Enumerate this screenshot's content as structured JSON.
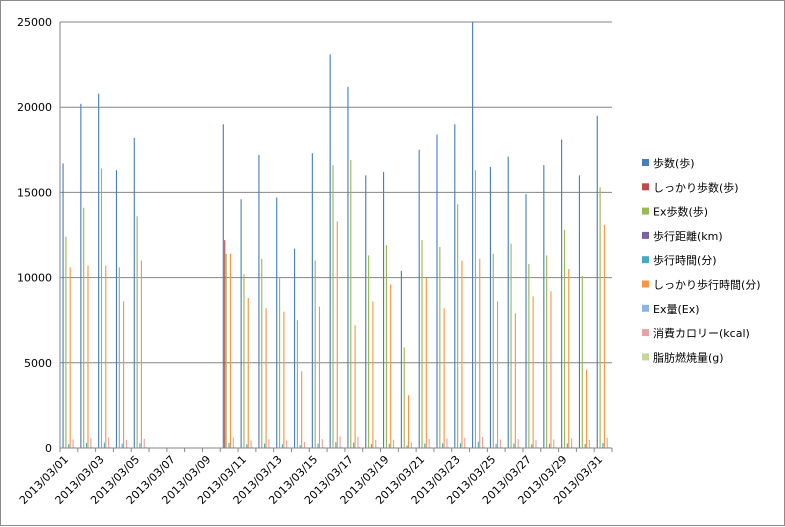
{
  "chart_data": {
    "type": "bar",
    "title": "",
    "xlabel": "",
    "ylabel": "",
    "ylim": [
      0,
      25000
    ],
    "yticks": [
      0,
      5000,
      10000,
      15000,
      20000,
      25000
    ],
    "grid": true,
    "legend_position": "right",
    "categories": [
      "2013/03/01",
      "2013/03/02",
      "2013/03/03",
      "2013/03/04",
      "2013/03/05",
      "2013/03/06",
      "2013/03/07",
      "2013/03/08",
      "2013/03/09",
      "2013/03/10",
      "2013/03/11",
      "2013/03/12",
      "2013/03/13",
      "2013/03/14",
      "2013/03/15",
      "2013/03/16",
      "2013/03/17",
      "2013/03/18",
      "2013/03/19",
      "2013/03/20",
      "2013/03/21",
      "2013/03/22",
      "2013/03/23",
      "2013/03/24",
      "2013/03/25",
      "2013/03/26",
      "2013/03/27",
      "2013/03/28",
      "2013/03/29",
      "2013/03/30",
      "2013/03/31"
    ],
    "tick_labels": [
      "2013/03/01",
      "2013/03/03",
      "2013/03/05",
      "2013/03/07",
      "2013/03/09",
      "2013/03/11",
      "2013/03/13",
      "2013/03/15",
      "2013/03/17",
      "2013/03/19",
      "2013/03/21",
      "2013/03/23",
      "2013/03/25",
      "2013/03/27",
      "2013/03/29",
      "2013/03/31"
    ],
    "series": [
      {
        "name": "歩数(歩)",
        "color": "#4a7ebb",
        "values": [
          16700,
          20200,
          20800,
          16300,
          18200,
          0,
          0,
          0,
          0,
          19000,
          14600,
          17200,
          14700,
          11700,
          17300,
          23100,
          21200,
          16000,
          16200,
          10400,
          17500,
          18400,
          19000,
          25000,
          16500,
          17100,
          14900,
          16600,
          18100,
          16000,
          19500
        ]
      },
      {
        "name": "しっかり歩数(歩)",
        "color": "#be4b48",
        "values": [
          0,
          0,
          0,
          0,
          0,
          0,
          0,
          0,
          0,
          12200,
          0,
          0,
          0,
          0,
          0,
          0,
          0,
          0,
          0,
          0,
          0,
          0,
          0,
          0,
          0,
          0,
          0,
          0,
          0,
          0,
          0
        ]
      },
      {
        "name": "Ex歩数(歩)",
        "color": "#98b954",
        "values": [
          12400,
          14100,
          16400,
          10600,
          13600,
          0,
          0,
          0,
          0,
          11400,
          10200,
          11100,
          10000,
          7500,
          11000,
          16600,
          16900,
          11300,
          11900,
          5900,
          12200,
          11800,
          14300,
          16300,
          11400,
          12000,
          10800,
          11300,
          12800,
          10100,
          15300
        ]
      },
      {
        "name": "歩行距離(km)",
        "color": "#7d60a0",
        "values": [
          10,
          13,
          13,
          10,
          12,
          0,
          0,
          0,
          0,
          12,
          9,
          11,
          9,
          7,
          11,
          14,
          13,
          10,
          10,
          6,
          11,
          11,
          12,
          15,
          10,
          11,
          9,
          10,
          11,
          10,
          12
        ]
      },
      {
        "name": "歩行時間(分)",
        "color": "#46aac5",
        "values": [
          220,
          300,
          320,
          250,
          280,
          0,
          0,
          0,
          0,
          290,
          220,
          260,
          220,
          170,
          260,
          340,
          320,
          240,
          240,
          150,
          260,
          270,
          280,
          360,
          250,
          260,
          220,
          250,
          270,
          240,
          290
        ]
      },
      {
        "name": "しっかり歩行時間(分)",
        "color": "#f79646",
        "values": [
          10600,
          10700,
          10700,
          8600,
          11000,
          0,
          0,
          0,
          0,
          11400,
          8800,
          8200,
          8000,
          4500,
          8300,
          13300,
          7200,
          8600,
          9600,
          3100,
          10000,
          8200,
          11000,
          11100,
          8600,
          7900,
          8900,
          9200,
          10500,
          4600,
          13100
        ]
      },
      {
        "name": "Ex量(Ex)",
        "color": "#8eb4e3",
        "values": [
          1,
          1,
          1,
          1,
          1,
          0,
          0,
          0,
          0,
          1,
          1,
          1,
          1,
          1,
          1,
          2,
          2,
          1,
          1,
          1,
          1,
          1,
          1,
          2,
          1,
          1,
          1,
          1,
          1,
          1,
          2
        ]
      },
      {
        "name": "消費カロリー(kcal)",
        "color": "#e6a3a3",
        "values": [
          500,
          580,
          630,
          470,
          540,
          0,
          0,
          0,
          0,
          620,
          450,
          510,
          440,
          360,
          520,
          680,
          650,
          480,
          490,
          320,
          530,
          550,
          600,
          650,
          500,
          520,
          460,
          500,
          560,
          480,
          600
        ]
      },
      {
        "name": "脂肪燃焼量(g)",
        "color": "#c3d69b",
        "values": [
          50,
          60,
          65,
          48,
          55,
          0,
          0,
          0,
          0,
          62,
          45,
          52,
          45,
          36,
          53,
          70,
          66,
          49,
          50,
          32,
          54,
          56,
          61,
          66,
          51,
          53,
          47,
          51,
          57,
          49,
          61
        ]
      }
    ]
  }
}
